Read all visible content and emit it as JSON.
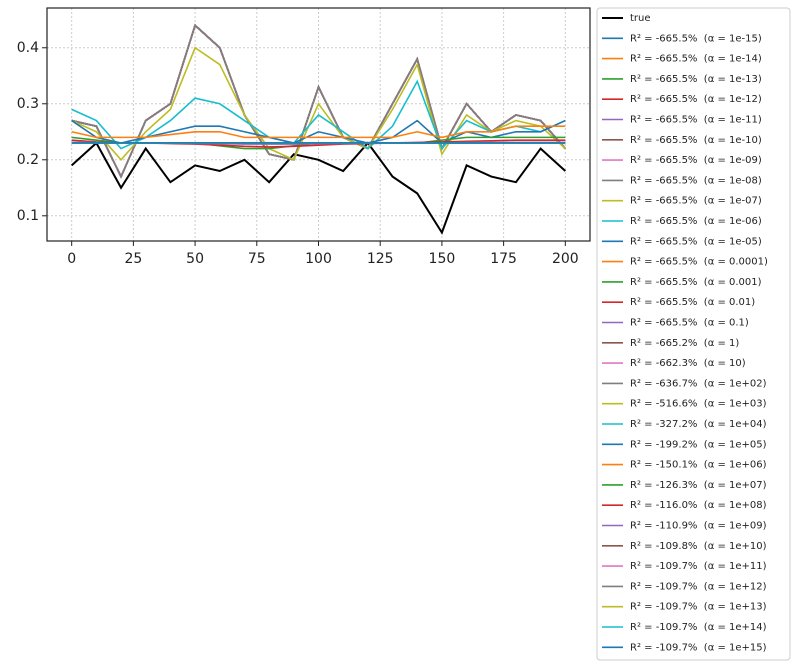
{
  "chart_data": {
    "type": "line",
    "x": [
      0,
      10,
      20,
      30,
      40,
      50,
      60,
      70,
      80,
      90,
      100,
      110,
      120,
      130,
      140,
      150,
      160,
      170,
      180,
      190,
      200
    ],
    "xlim": [
      -10,
      210
    ],
    "xticks": [
      0,
      25,
      50,
      75,
      100,
      125,
      150,
      175,
      200
    ],
    "ylim": [
      0.055,
      0.471
    ],
    "yticks": [
      0.1,
      0.2,
      0.3,
      0.4
    ],
    "grid": true,
    "legend": "outside right",
    "series": [
      {
        "name": "true",
        "color": "#000000",
        "values": [
          0.19,
          0.23,
          0.15,
          0.22,
          0.16,
          0.19,
          0.18,
          0.2,
          0.16,
          0.21,
          0.2,
          0.18,
          0.23,
          0.17,
          0.14,
          0.07,
          0.19,
          0.17,
          0.16,
          0.22,
          0.18
        ]
      },
      {
        "name": "R² = -665.5%  (α = 1e-15)",
        "color": "#1f77b4",
        "values": [
          0.27,
          0.26,
          0.17,
          0.27,
          0.3,
          0.44,
          0.4,
          0.28,
          0.21,
          0.2,
          0.33,
          0.24,
          0.22,
          0.3,
          0.38,
          0.22,
          0.3,
          0.25,
          0.28,
          0.27,
          0.22
        ]
      },
      {
        "name": "R² = -665.5%  (α = 1e-14)",
        "color": "#ff7f0e",
        "values": [
          0.27,
          0.26,
          0.17,
          0.27,
          0.3,
          0.44,
          0.4,
          0.28,
          0.21,
          0.2,
          0.33,
          0.24,
          0.22,
          0.3,
          0.38,
          0.22,
          0.3,
          0.25,
          0.28,
          0.27,
          0.22
        ]
      },
      {
        "name": "R² = -665.5%  (α = 1e-13)",
        "color": "#2ca02c",
        "values": [
          0.27,
          0.26,
          0.17,
          0.27,
          0.3,
          0.44,
          0.4,
          0.28,
          0.21,
          0.2,
          0.33,
          0.24,
          0.22,
          0.3,
          0.38,
          0.22,
          0.3,
          0.25,
          0.28,
          0.27,
          0.22
        ]
      },
      {
        "name": "R² = -665.5%  (α = 1e-12)",
        "color": "#d62728",
        "values": [
          0.27,
          0.26,
          0.17,
          0.27,
          0.3,
          0.44,
          0.4,
          0.28,
          0.21,
          0.2,
          0.33,
          0.24,
          0.22,
          0.3,
          0.38,
          0.22,
          0.3,
          0.25,
          0.28,
          0.27,
          0.22
        ]
      },
      {
        "name": "R² = -665.5%  (α = 1e-11)",
        "color": "#9467bd",
        "values": [
          0.27,
          0.26,
          0.17,
          0.27,
          0.3,
          0.44,
          0.4,
          0.28,
          0.21,
          0.2,
          0.33,
          0.24,
          0.22,
          0.3,
          0.38,
          0.22,
          0.3,
          0.25,
          0.28,
          0.27,
          0.22
        ]
      },
      {
        "name": "R² = -665.5%  (α = 1e-10)",
        "color": "#8c564b",
        "values": [
          0.27,
          0.26,
          0.17,
          0.27,
          0.3,
          0.44,
          0.4,
          0.28,
          0.21,
          0.2,
          0.33,
          0.24,
          0.22,
          0.3,
          0.38,
          0.22,
          0.3,
          0.25,
          0.28,
          0.27,
          0.22
        ]
      },
      {
        "name": "R² = -665.5%  (α = 1e-09)",
        "color": "#e377c2",
        "values": [
          0.27,
          0.26,
          0.17,
          0.27,
          0.3,
          0.44,
          0.4,
          0.28,
          0.21,
          0.2,
          0.33,
          0.24,
          0.22,
          0.3,
          0.38,
          0.22,
          0.3,
          0.25,
          0.28,
          0.27,
          0.22
        ]
      },
      {
        "name": "R² = -665.5%  (α = 1e-08)",
        "color": "#7f7f7f",
        "values": [
          0.27,
          0.26,
          0.17,
          0.27,
          0.3,
          0.44,
          0.4,
          0.28,
          0.21,
          0.2,
          0.33,
          0.24,
          0.22,
          0.3,
          0.38,
          0.22,
          0.3,
          0.25,
          0.28,
          0.27,
          0.22
        ]
      },
      {
        "name": "R² = -665.5%  (α = 1e-07)",
        "color": "#bcbd22",
        "values": [
          0.27,
          0.26,
          0.17,
          0.27,
          0.3,
          0.44,
          0.4,
          0.28,
          0.21,
          0.2,
          0.33,
          0.24,
          0.22,
          0.3,
          0.38,
          0.22,
          0.3,
          0.25,
          0.28,
          0.27,
          0.22
        ]
      },
      {
        "name": "R² = -665.5%  (α = 1e-06)",
        "color": "#17becf",
        "values": [
          0.27,
          0.26,
          0.17,
          0.27,
          0.3,
          0.44,
          0.4,
          0.28,
          0.21,
          0.2,
          0.33,
          0.24,
          0.22,
          0.3,
          0.38,
          0.22,
          0.3,
          0.25,
          0.28,
          0.27,
          0.22
        ]
      },
      {
        "name": "R² = -665.5%  (α = 1e-05)",
        "color": "#1f77b4",
        "values": [
          0.27,
          0.26,
          0.17,
          0.27,
          0.3,
          0.44,
          0.4,
          0.28,
          0.21,
          0.2,
          0.33,
          0.24,
          0.22,
          0.3,
          0.38,
          0.22,
          0.3,
          0.25,
          0.28,
          0.27,
          0.22
        ]
      },
      {
        "name": "R² = -665.5%  (α = 0.0001)",
        "color": "#ff7f0e",
        "values": [
          0.27,
          0.26,
          0.17,
          0.27,
          0.3,
          0.44,
          0.4,
          0.28,
          0.21,
          0.2,
          0.33,
          0.24,
          0.22,
          0.3,
          0.38,
          0.22,
          0.3,
          0.25,
          0.28,
          0.27,
          0.22
        ]
      },
      {
        "name": "R² = -665.5%  (α = 0.001)",
        "color": "#2ca02c",
        "values": [
          0.27,
          0.26,
          0.17,
          0.27,
          0.3,
          0.44,
          0.4,
          0.28,
          0.21,
          0.2,
          0.33,
          0.24,
          0.22,
          0.3,
          0.38,
          0.22,
          0.3,
          0.25,
          0.28,
          0.27,
          0.22
        ]
      },
      {
        "name": "R² = -665.5%  (α = 0.01)",
        "color": "#d62728",
        "values": [
          0.27,
          0.26,
          0.17,
          0.27,
          0.3,
          0.44,
          0.4,
          0.28,
          0.21,
          0.2,
          0.33,
          0.24,
          0.22,
          0.3,
          0.38,
          0.22,
          0.3,
          0.25,
          0.28,
          0.27,
          0.22
        ]
      },
      {
        "name": "R² = -665.5%  (α = 0.1)",
        "color": "#9467bd",
        "values": [
          0.27,
          0.26,
          0.17,
          0.27,
          0.3,
          0.44,
          0.4,
          0.28,
          0.21,
          0.2,
          0.33,
          0.24,
          0.22,
          0.3,
          0.38,
          0.22,
          0.3,
          0.25,
          0.28,
          0.27,
          0.22
        ]
      },
      {
        "name": "R² = -665.2%  (α = 1)",
        "color": "#8c564b",
        "values": [
          0.27,
          0.26,
          0.17,
          0.27,
          0.3,
          0.44,
          0.4,
          0.28,
          0.21,
          0.2,
          0.33,
          0.24,
          0.22,
          0.3,
          0.38,
          0.22,
          0.3,
          0.25,
          0.28,
          0.27,
          0.22
        ]
      },
      {
        "name": "R² = -662.3%  (α = 10)",
        "color": "#e377c2",
        "values": [
          0.27,
          0.26,
          0.17,
          0.27,
          0.3,
          0.44,
          0.4,
          0.28,
          0.21,
          0.2,
          0.33,
          0.24,
          0.22,
          0.3,
          0.38,
          0.22,
          0.3,
          0.25,
          0.28,
          0.27,
          0.22
        ]
      },
      {
        "name": "R² = -636.7%  (α = 1e+02)",
        "color": "#7f7f7f",
        "values": [
          0.27,
          0.26,
          0.17,
          0.27,
          0.3,
          0.44,
          0.4,
          0.28,
          0.21,
          0.2,
          0.33,
          0.24,
          0.22,
          0.3,
          0.38,
          0.22,
          0.3,
          0.25,
          0.28,
          0.27,
          0.22
        ]
      },
      {
        "name": "R² = -516.6%  (α = 1e+03)",
        "color": "#bcbd22",
        "values": [
          0.27,
          0.25,
          0.2,
          0.25,
          0.29,
          0.4,
          0.37,
          0.28,
          0.22,
          0.2,
          0.3,
          0.24,
          0.22,
          0.29,
          0.37,
          0.21,
          0.28,
          0.25,
          0.27,
          0.26,
          0.22
        ]
      },
      {
        "name": "R² = -327.2%  (α = 1e+04)",
        "color": "#17becf",
        "values": [
          0.29,
          0.27,
          0.22,
          0.24,
          0.27,
          0.31,
          0.3,
          0.27,
          0.24,
          0.23,
          0.28,
          0.25,
          0.22,
          0.26,
          0.34,
          0.22,
          0.27,
          0.25,
          0.26,
          0.25,
          0.27
        ]
      },
      {
        "name": "R² = -199.2%  (α = 1e+05)",
        "color": "#1f77b4",
        "values": [
          0.27,
          0.24,
          0.23,
          0.24,
          0.25,
          0.26,
          0.26,
          0.25,
          0.24,
          0.23,
          0.25,
          0.24,
          0.23,
          0.24,
          0.27,
          0.23,
          0.25,
          0.24,
          0.25,
          0.25,
          0.27
        ]
      },
      {
        "name": "R² = -150.1%  (α = 1e+06)",
        "color": "#ff7f0e",
        "values": [
          0.25,
          0.24,
          0.24,
          0.24,
          0.245,
          0.25,
          0.25,
          0.24,
          0.24,
          0.24,
          0.24,
          0.24,
          0.24,
          0.24,
          0.25,
          0.24,
          0.25,
          0.25,
          0.26,
          0.26,
          0.26
        ]
      },
      {
        "name": "R² = -126.3%  (α = 1e+07)",
        "color": "#2ca02c",
        "values": [
          0.24,
          0.235,
          0.23,
          0.23,
          0.23,
          0.23,
          0.225,
          0.22,
          0.22,
          0.225,
          0.23,
          0.23,
          0.23,
          0.23,
          0.23,
          0.235,
          0.24,
          0.24,
          0.24,
          0.24,
          0.24
        ]
      },
      {
        "name": "R² = -116.0%  (α = 1e+08)",
        "color": "#d62728",
        "values": [
          0.235,
          0.232,
          0.23,
          0.23,
          0.229,
          0.228,
          0.226,
          0.224,
          0.223,
          0.224,
          0.226,
          0.228,
          0.229,
          0.23,
          0.231,
          0.232,
          0.233,
          0.234,
          0.235,
          0.235,
          0.235
        ]
      },
      {
        "name": "R² = -110.9%  (α = 1e+09)",
        "color": "#9467bd",
        "values": [
          0.231,
          0.231,
          0.23,
          0.23,
          0.23,
          0.229,
          0.229,
          0.228,
          0.228,
          0.228,
          0.229,
          0.229,
          0.23,
          0.23,
          0.23,
          0.23,
          0.231,
          0.231,
          0.231,
          0.231,
          0.231
        ]
      },
      {
        "name": "R² = -109.8%  (α = 1e+10)",
        "color": "#8c564b",
        "values": [
          0.23,
          0.23,
          0.23,
          0.23,
          0.23,
          0.23,
          0.23,
          0.23,
          0.23,
          0.23,
          0.23,
          0.23,
          0.23,
          0.23,
          0.23,
          0.23,
          0.23,
          0.23,
          0.23,
          0.23,
          0.23
        ]
      },
      {
        "name": "R² = -109.7%  (α = 1e+11)",
        "color": "#e377c2",
        "values": [
          0.23,
          0.23,
          0.23,
          0.23,
          0.23,
          0.23,
          0.23,
          0.23,
          0.23,
          0.23,
          0.23,
          0.23,
          0.23,
          0.23,
          0.23,
          0.23,
          0.23,
          0.23,
          0.23,
          0.23,
          0.23
        ]
      },
      {
        "name": "R² = -109.7%  (α = 1e+12)",
        "color": "#7f7f7f",
        "values": [
          0.23,
          0.23,
          0.23,
          0.23,
          0.23,
          0.23,
          0.23,
          0.23,
          0.23,
          0.23,
          0.23,
          0.23,
          0.23,
          0.23,
          0.23,
          0.23,
          0.23,
          0.23,
          0.23,
          0.23,
          0.23
        ]
      },
      {
        "name": "R² = -109.7%  (α = 1e+13)",
        "color": "#bcbd22",
        "values": [
          0.23,
          0.23,
          0.23,
          0.23,
          0.23,
          0.23,
          0.23,
          0.23,
          0.23,
          0.23,
          0.23,
          0.23,
          0.23,
          0.23,
          0.23,
          0.23,
          0.23,
          0.23,
          0.23,
          0.23,
          0.23
        ]
      },
      {
        "name": "R² = -109.7%  (α = 1e+14)",
        "color": "#17becf",
        "values": [
          0.23,
          0.23,
          0.23,
          0.23,
          0.23,
          0.23,
          0.23,
          0.23,
          0.23,
          0.23,
          0.23,
          0.23,
          0.23,
          0.23,
          0.23,
          0.23,
          0.23,
          0.23,
          0.23,
          0.23,
          0.23
        ]
      },
      {
        "name": "R² = -109.7%  (α = 1e+15)",
        "color": "#1f77b4",
        "values": [
          0.23,
          0.23,
          0.23,
          0.23,
          0.23,
          0.23,
          0.23,
          0.23,
          0.23,
          0.23,
          0.23,
          0.23,
          0.23,
          0.23,
          0.23,
          0.23,
          0.23,
          0.23,
          0.23,
          0.23,
          0.23
        ]
      }
    ]
  }
}
